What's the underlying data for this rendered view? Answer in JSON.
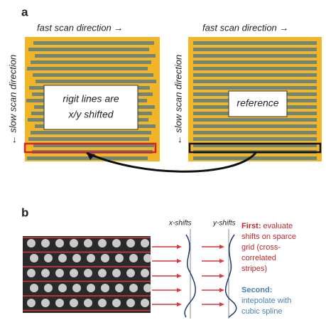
{
  "panel_a": {
    "label": "a",
    "left": {
      "top_label": "fast scan direction →",
      "side_label": "← slow scan direction",
      "box_lines": [
        "rigit lines are",
        "x/y shifted"
      ]
    },
    "right": {
      "top_label": "fast scan direction →",
      "side_label": "← slow scan direction",
      "box_text": "reference"
    }
  },
  "panel_b": {
    "label": "b",
    "x_label": "x-shifts",
    "y_label": "y-shifts",
    "first": {
      "heading": "First:",
      "lines": [
        " evaluate",
        "shifts on sparce",
        "grid (cross-",
        "correlated",
        "stripes)"
      ]
    },
    "second": {
      "heading": "Second:",
      "lines": [
        "intepolate with",
        "cubic spline"
      ]
    }
  }
}
